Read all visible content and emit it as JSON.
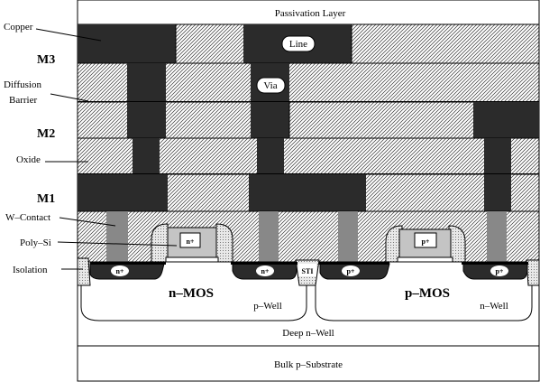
{
  "labels": {
    "passivation": "Passivation Layer",
    "copper": "Copper",
    "m3": "M3",
    "diffusion_line1": "Diffusion",
    "diffusion_line2": "Barrier",
    "m2": "M2",
    "oxide": "Oxide",
    "m1": "M1",
    "w_contact": "W–Contact",
    "poly_si": "Poly–Si",
    "isolation": "Isolation"
  },
  "callouts": {
    "line": "Line",
    "via": "Via"
  },
  "regions": {
    "nmos": "n–MOS",
    "pmos": "p–MOS",
    "pwell": "p–Well",
    "nwell": "n–Well",
    "deep_nwell": "Deep n–Well",
    "substrate": "Bulk p–Substrate",
    "sti": "STI"
  },
  "doping": {
    "n_source": "n+",
    "n_drain": "n+",
    "n_gate": "n+",
    "p_source": "p+",
    "p_drain": "p+",
    "p_gate": "p+"
  },
  "colors": {
    "copper": "#2b2b2b",
    "contact": "#888888",
    "poly": "#c4c4c4",
    "outline": "#000000",
    "background": "#ffffff"
  }
}
